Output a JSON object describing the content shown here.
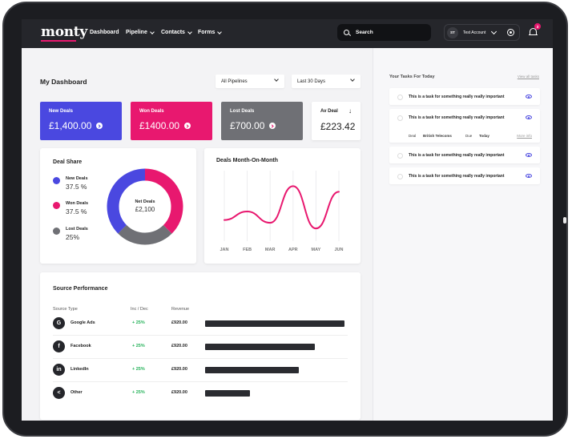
{
  "nav": {
    "logo": "monty",
    "items": [
      {
        "label": "Dashboard",
        "dropdown": false
      },
      {
        "label": "Pipeline",
        "dropdown": true
      },
      {
        "label": "Contacts",
        "dropdown": true
      },
      {
        "label": "Forms",
        "dropdown": true
      }
    ],
    "search_placeholder": "Search",
    "account_initials": "ST",
    "account_name": "Test Account",
    "notifications_count": "3"
  },
  "dashboard": {
    "title": "My Dashboard",
    "filter_pipeline": "All Pipelines",
    "filter_period": "Last 30 Days"
  },
  "stats": [
    {
      "label": "New Deals",
      "value": "£1,400.00",
      "color": "#4a48e0"
    },
    {
      "label": "Won Deals",
      "value": "£1400.00",
      "color": "#e8186f"
    },
    {
      "label": "Lost Deals",
      "value": "£700.00",
      "color": "#6f7075"
    },
    {
      "label": "Av Deal",
      "value": "£223.42",
      "color": "#ffffff"
    }
  ],
  "deal_share": {
    "title": "Deal Share",
    "center_label": "Net Deals",
    "center_value": "£2,100",
    "items": [
      {
        "name": "New Deals",
        "pct": "37.5 %",
        "color": "#4a48e0"
      },
      {
        "name": "Won Deals",
        "pct": "37.5 %",
        "color": "#e8186f"
      },
      {
        "name": "Lost Deals",
        "pct": "25%",
        "color": "#6f7075"
      }
    ]
  },
  "chart_data": {
    "type": "line",
    "title": "Deals Month-On-Month",
    "categories": [
      "JAN",
      "FEB",
      "MAR",
      "APR",
      "MAY",
      "JUN"
    ],
    "series": [
      {
        "values": [
          30,
          42,
          26,
          78,
          18,
          70
        ]
      }
    ],
    "ylim": [
      0,
      100
    ],
    "grid": true,
    "color": "#e8186f"
  },
  "source_performance": {
    "title": "Source Performance",
    "headers": [
      "Source Type",
      "Inc / Dec",
      "Revenue"
    ],
    "rows": [
      {
        "icon": "G",
        "icon_name": "google-icon",
        "name": "Google Ads",
        "inc": "+ 25%",
        "revenue": "£920.00",
        "share": 1.0
      },
      {
        "icon": "f",
        "icon_name": "facebook-icon",
        "name": "Facebook",
        "inc": "+ 25%",
        "revenue": "£920.00",
        "share": 0.79
      },
      {
        "icon": "in",
        "icon_name": "linkedin-icon",
        "name": "LinkedIn",
        "inc": "+ 25%",
        "revenue": "£920.00",
        "share": 0.67
      },
      {
        "icon": "<",
        "icon_name": "share-icon",
        "name": "Other",
        "inc": "+ 25%",
        "revenue": "£920.00",
        "share": 0.32
      }
    ]
  },
  "tasks": {
    "title": "Your Tasks For Today",
    "view_all": "View all tasks",
    "items": [
      {
        "text": "This is a task for something really really important"
      },
      {
        "text": "This is a task for something really really important",
        "deal_label": "Deal",
        "deal_value": "British Telecoms",
        "due_label": "Due",
        "due_value": "Today",
        "more": "More info"
      },
      {
        "text": "This is a task for something really really important"
      },
      {
        "text": "This is a task for something really really important"
      }
    ]
  }
}
